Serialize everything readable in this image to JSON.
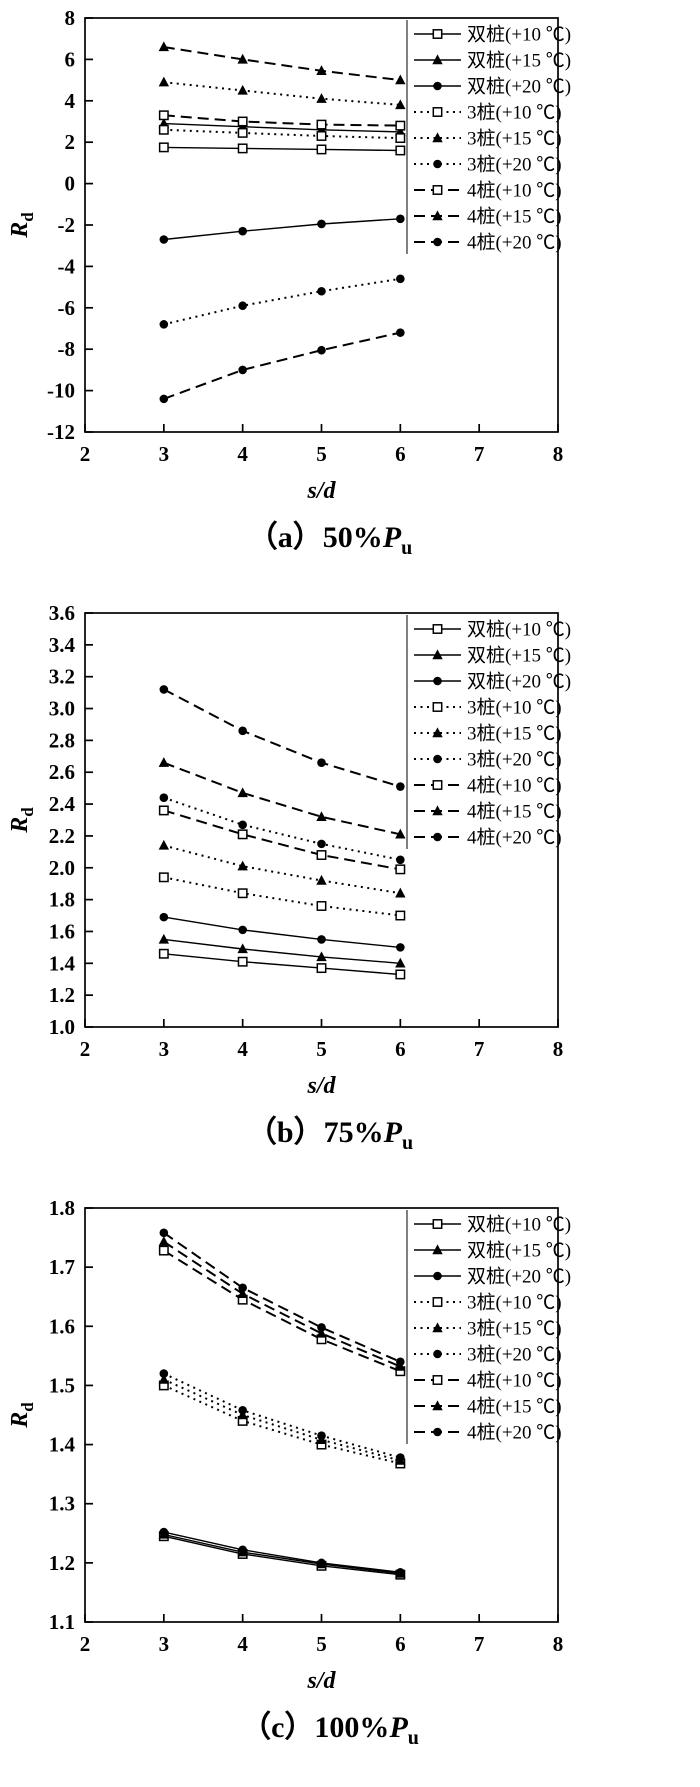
{
  "figure": {
    "xlabel": "s/d",
    "ylabel_symbol": "R",
    "ylabel_sub": "d"
  },
  "chart_data": [
    {
      "type": "line",
      "xlabel": "s/d",
      "ylabel": {
        "symbol": "R",
        "sub": "d"
      },
      "xlim": [
        2,
        8
      ],
      "ylim": [
        -12,
        8
      ],
      "xticks": [
        "2",
        "3",
        "4",
        "5",
        "6",
        "7",
        "8"
      ],
      "yticks": [
        "-12",
        "-10",
        "-8",
        "-6",
        "-4",
        "-2",
        "0",
        "2",
        "4",
        "6",
        "8"
      ],
      "x": [
        3,
        4,
        5,
        6
      ],
      "grid": false,
      "legend_position": "top-right",
      "caption": {
        "prefix": "（a）50%",
        "symbol": "P",
        "sub": "u"
      },
      "series": [
        {
          "name": "双桩(+10 ℃)",
          "marker": "square-open",
          "line": "solid",
          "values": [
            1.75,
            1.7,
            1.65,
            1.6
          ]
        },
        {
          "name": "双桩(+15 ℃)",
          "marker": "triangle-filled",
          "line": "solid",
          "values": [
            2.9,
            2.75,
            2.6,
            2.5
          ]
        },
        {
          "name": "双桩(+20 ℃)",
          "marker": "circle-filled",
          "line": "solid",
          "values": [
            -2.7,
            -2.3,
            -1.95,
            -1.7
          ]
        },
        {
          "name": "3桩(+10 ℃)",
          "marker": "square-open",
          "line": "dotted",
          "values": [
            2.6,
            2.45,
            2.3,
            2.2
          ]
        },
        {
          "name": "3桩(+15 ℃)",
          "marker": "triangle-filled",
          "line": "dotted",
          "values": [
            4.9,
            4.5,
            4.1,
            3.8
          ]
        },
        {
          "name": "3桩(+20 ℃)",
          "marker": "circle-filled",
          "line": "dotted",
          "values": [
            -6.8,
            -5.9,
            -5.2,
            -4.6
          ]
        },
        {
          "name": "4桩(+10 ℃)",
          "marker": "square-open",
          "line": "dashed",
          "values": [
            3.3,
            3.0,
            2.85,
            2.8
          ]
        },
        {
          "name": "4桩(+15 ℃)",
          "marker": "triangle-filled",
          "line": "dashed",
          "values": [
            6.6,
            6.0,
            5.45,
            5.0
          ]
        },
        {
          "name": "4桩(+20 ℃)",
          "marker": "circle-filled",
          "line": "dashed",
          "values": [
            -10.4,
            -9.0,
            -8.05,
            -7.2
          ]
        }
      ]
    },
    {
      "type": "line",
      "xlabel": "s/d",
      "ylabel": {
        "symbol": "R",
        "sub": "d"
      },
      "xlim": [
        2,
        8
      ],
      "ylim": [
        1.0,
        3.6
      ],
      "xticks": [
        "2",
        "3",
        "4",
        "5",
        "6",
        "7",
        "8"
      ],
      "yticks": [
        "1.0",
        "1.2",
        "1.4",
        "1.6",
        "1.8",
        "2.0",
        "2.2",
        "2.4",
        "2.6",
        "2.8",
        "3.0",
        "3.2",
        "3.4",
        "3.6"
      ],
      "x": [
        3,
        4,
        5,
        6
      ],
      "grid": false,
      "legend_position": "top-right",
      "caption": {
        "prefix": "（b）75%",
        "symbol": "P",
        "sub": "u"
      },
      "series": [
        {
          "name": "双桩(+10 ℃)",
          "marker": "square-open",
          "line": "solid",
          "values": [
            1.46,
            1.41,
            1.37,
            1.33
          ]
        },
        {
          "name": "双桩(+15 ℃)",
          "marker": "triangle-filled",
          "line": "solid",
          "values": [
            1.55,
            1.49,
            1.44,
            1.4
          ]
        },
        {
          "name": "双桩(+20 ℃)",
          "marker": "circle-filled",
          "line": "solid",
          "values": [
            1.69,
            1.61,
            1.55,
            1.5
          ]
        },
        {
          "name": "3桩(+10 ℃)",
          "marker": "square-open",
          "line": "dotted",
          "values": [
            1.94,
            1.84,
            1.76,
            1.7
          ]
        },
        {
          "name": "3桩(+15 ℃)",
          "marker": "triangle-filled",
          "line": "dotted",
          "values": [
            2.14,
            2.01,
            1.92,
            1.84
          ]
        },
        {
          "name": "3桩(+20 ℃)",
          "marker": "circle-filled",
          "line": "dotted",
          "values": [
            2.44,
            2.27,
            2.15,
            2.05
          ]
        },
        {
          "name": "4桩(+10 ℃)",
          "marker": "square-open",
          "line": "dashed",
          "values": [
            2.36,
            2.21,
            2.08,
            1.99
          ]
        },
        {
          "name": "4桩(+15 ℃)",
          "marker": "triangle-filled",
          "line": "dashed",
          "values": [
            2.66,
            2.47,
            2.32,
            2.21
          ]
        },
        {
          "name": "4桩(+20 ℃)",
          "marker": "circle-filled",
          "line": "dashed",
          "values": [
            3.12,
            2.86,
            2.66,
            2.51
          ]
        }
      ]
    },
    {
      "type": "line",
      "xlabel": "s/d",
      "ylabel": {
        "symbol": "R",
        "sub": "d"
      },
      "xlim": [
        2,
        8
      ],
      "ylim": [
        1.1,
        1.8
      ],
      "xticks": [
        "2",
        "3",
        "4",
        "5",
        "6",
        "7",
        "8"
      ],
      "yticks": [
        "1.1",
        "1.2",
        "1.3",
        "1.4",
        "1.5",
        "1.6",
        "1.7",
        "1.8"
      ],
      "x": [
        3,
        4,
        5,
        6
      ],
      "grid": false,
      "legend_position": "top-right",
      "caption": {
        "prefix": "（c）100%",
        "symbol": "P",
        "sub": "u"
      },
      "series": [
        {
          "name": "双桩(+10 ℃)",
          "marker": "square-open",
          "line": "solid",
          "values": [
            1.245,
            1.215,
            1.195,
            1.18
          ]
        },
        {
          "name": "双桩(+15 ℃)",
          "marker": "triangle-filled",
          "line": "solid",
          "values": [
            1.248,
            1.218,
            1.198,
            1.182
          ]
        },
        {
          "name": "双桩(+20 ℃)",
          "marker": "circle-filled",
          "line": "solid",
          "values": [
            1.252,
            1.222,
            1.2,
            1.184
          ]
        },
        {
          "name": "3桩(+10 ℃)",
          "marker": "square-open",
          "line": "dotted",
          "values": [
            1.5,
            1.44,
            1.4,
            1.368
          ]
        },
        {
          "name": "3桩(+15 ℃)",
          "marker": "triangle-filled",
          "line": "dotted",
          "values": [
            1.51,
            1.45,
            1.408,
            1.373
          ]
        },
        {
          "name": "3桩(+20 ℃)",
          "marker": "circle-filled",
          "line": "dotted",
          "values": [
            1.52,
            1.458,
            1.415,
            1.378
          ]
        },
        {
          "name": "4桩(+10 ℃)",
          "marker": "square-open",
          "line": "dashed",
          "values": [
            1.728,
            1.645,
            1.578,
            1.524
          ]
        },
        {
          "name": "4桩(+15 ℃)",
          "marker": "triangle-filled",
          "line": "dashed",
          "values": [
            1.743,
            1.655,
            1.588,
            1.532
          ]
        },
        {
          "name": "4桩(+20 ℃)",
          "marker": "circle-filled",
          "line": "dashed",
          "values": [
            1.758,
            1.665,
            1.598,
            1.54
          ]
        }
      ]
    }
  ]
}
